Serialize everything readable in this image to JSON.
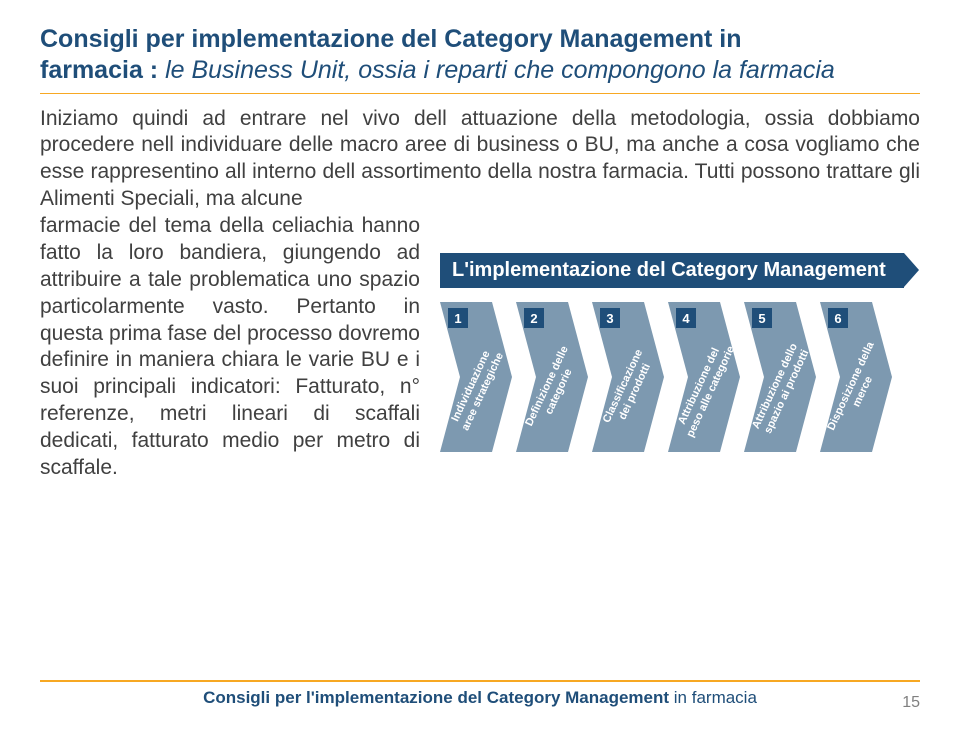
{
  "title": {
    "line1": "Consigli per implementazione del Category Management in",
    "line2_bold": "farmacia : ",
    "line2_italic": "le Business Unit, ossia i reparti che compongono la farmacia"
  },
  "body": {
    "para_full": "Iniziamo quindi ad entrare nel vivo dell attuazione della metodologia, ossia dobbiamo procedere nell individuare delle macro aree di business o BU, ma anche a cosa vogliamo che esse rappresentino all interno dell assortimento della nostra farmacia. Tutti possono trattare gli Alimenti Speciali, ma alcune",
    "para_left": "farmacie del tema della celiachia hanno fatto la loro bandiera, giungendo ad attribuire a tale problematica uno spazio particolarmente vasto. Pertanto in questa prima fase del processo dovremo definire in maniera chiara le varie BU e i suoi principali indicatori: Fatturato, n° referenze, metri lineari di scaffali dedicati, fatturato medio per metro di scaffale."
  },
  "diagram": {
    "title": "L'implementazione del Category Management",
    "arrow_fill": "#7d99b0",
    "num_fill": "#1f4e79",
    "steps": [
      {
        "n": "1",
        "label": "Individuazione\naree strategiche"
      },
      {
        "n": "2",
        "label": "Definizione delle\ncategorie"
      },
      {
        "n": "3",
        "label": "Classificazione\ndei prodotti"
      },
      {
        "n": "4",
        "label": "Attribuzione del\npeso alle categorie"
      },
      {
        "n": "5",
        "label": "Attribuzione dello\nspazio ai prodotti"
      },
      {
        "n": "6",
        "label": "Disposizione della\nmerce"
      }
    ]
  },
  "footer": {
    "text_bold": "Consigli per l'implementazione del Category Management",
    "text_rest": "   in farmacia",
    "page": "15"
  },
  "colors": {
    "title": "#1f4e79",
    "accent": "#f7a823",
    "body": "#404040"
  }
}
